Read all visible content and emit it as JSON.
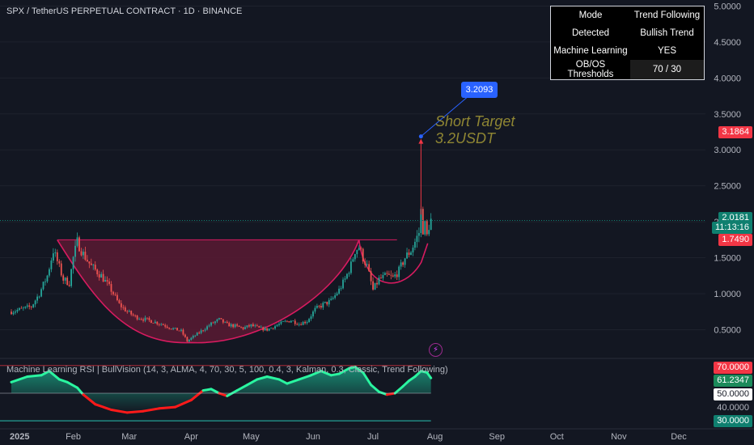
{
  "symbol": "SPX / TetherUS PERPETUAL CONTRACT · 1D · BINANCE",
  "info_table": [
    {
      "key": "Mode",
      "value": "Trend Following"
    },
    {
      "key": "Detected",
      "value": "Bullish Trend"
    },
    {
      "key": "Machine Learning",
      "value": "YES"
    },
    {
      "key": "OB/OS Thresholds",
      "value": "70 / 30"
    }
  ],
  "price_labels": {
    "target_marker": "3.1864",
    "last_price": "2.0181",
    "countdown": "11:13:16",
    "neckline": "1.7490"
  },
  "target_text_line1": "Short Target",
  "target_text_line2": "3.2USDT",
  "target_callout": "3.2093",
  "indicator": {
    "title": "Machine Learning RSI | BullVision (14, 3, ALMA, 4, 70, 30, 5, 100, 0.4, 3, Kalman, 0.3, Classic, Trend Following)",
    "axis_labels": [
      "70.0000",
      "61.2347",
      "50.0000",
      "40.0000",
      "30.0000"
    ]
  },
  "colors": {
    "background": "#131722",
    "up_candle": "#26a69a",
    "down_candle": "#ef5350",
    "cup": "#d81b60",
    "cup_fill": "#5a1a33",
    "rsi_up": "#2af5a0",
    "rsi_down": "#ff1a1a",
    "target_label": "#2962ff"
  },
  "chart_data": {
    "type": "candlestick",
    "x_ticks": [
      "2025",
      "Feb",
      "Mar",
      "Apr",
      "May",
      "Jun",
      "Jul",
      "Aug",
      "Sep",
      "Oct",
      "Nov",
      "Dec"
    ],
    "y_ticks": [
      0.5,
      1.0,
      1.5,
      2.0,
      2.5,
      3.0,
      3.5,
      4.0,
      4.5,
      5.0
    ],
    "y_tick_labels": [
      "0.5000",
      "1.0000",
      "1.5000",
      "2.0000",
      "2.5000",
      "3.0000",
      "3.5000",
      "4.0000",
      "4.5000",
      "5.0000"
    ],
    "ylim": [
      0.1,
      5.05
    ],
    "close_path": [
      [
        0,
        0.75
      ],
      [
        10,
        0.82
      ],
      [
        14,
        1.0
      ],
      [
        18,
        1.25
      ],
      [
        21,
        1.6
      ],
      [
        23,
        1.45
      ],
      [
        26,
        1.2
      ],
      [
        29,
        1.15
      ],
      [
        31,
        1.5
      ],
      [
        33,
        1.72
      ],
      [
        36,
        1.55
      ],
      [
        40,
        1.38
      ],
      [
        45,
        1.25
      ],
      [
        50,
        1.05
      ],
      [
        54,
        0.85
      ],
      [
        58,
        0.75
      ],
      [
        62,
        0.68
      ],
      [
        66,
        0.65
      ],
      [
        70,
        0.62
      ],
      [
        75,
        0.58
      ],
      [
        80,
        0.52
      ],
      [
        85,
        0.48
      ],
      [
        88,
        0.34
      ],
      [
        92,
        0.42
      ],
      [
        96,
        0.5
      ],
      [
        100,
        0.58
      ],
      [
        104,
        0.64
      ],
      [
        108,
        0.57
      ],
      [
        112,
        0.55
      ],
      [
        116,
        0.52
      ],
      [
        120,
        0.56
      ],
      [
        124,
        0.52
      ],
      [
        128,
        0.5
      ],
      [
        132,
        0.55
      ],
      [
        136,
        0.6
      ],
      [
        140,
        0.63
      ],
      [
        144,
        0.58
      ],
      [
        148,
        0.62
      ],
      [
        152,
        0.78
      ],
      [
        156,
        0.85
      ],
      [
        160,
        0.9
      ],
      [
        164,
        1.05
      ],
      [
        167,
        1.2
      ],
      [
        170,
        1.4
      ],
      [
        172,
        1.6
      ],
      [
        174,
        1.65
      ],
      [
        176,
        1.5
      ],
      [
        178,
        1.38
      ],
      [
        181,
        1.05
      ],
      [
        184,
        1.2
      ],
      [
        188,
        1.25
      ],
      [
        191,
        1.22
      ],
      [
        194,
        1.32
      ],
      [
        197,
        1.5
      ],
      [
        200,
        1.6
      ],
      [
        202,
        1.72
      ],
      [
        204,
        1.85
      ],
      [
        205,
        2.15
      ],
      [
        206,
        1.9
      ],
      [
        207,
        1.95
      ],
      [
        208,
        1.8
      ],
      [
        209,
        1.95
      ],
      [
        210,
        2.02
      ]
    ],
    "neckline": {
      "start_day": 23,
      "end_day": 174,
      "price": 1.749
    },
    "target": {
      "price": 3.1864,
      "callout": 3.2093,
      "label_line1": "Short Target",
      "label_line2": "3.2USDT",
      "from_price": 2.1
    },
    "rsi": {
      "ylim": [
        26,
        74
      ],
      "thresholds": [
        70,
        50,
        30
      ],
      "current": 61.2347,
      "path": [
        [
          0,
          58
        ],
        [
          8,
          62
        ],
        [
          15,
          63
        ],
        [
          19,
          66
        ],
        [
          24,
          60
        ],
        [
          28,
          58
        ],
        [
          33,
          54
        ],
        [
          36,
          49
        ],
        [
          42,
          42
        ],
        [
          50,
          38
        ],
        [
          58,
          36
        ],
        [
          66,
          37
        ],
        [
          74,
          39
        ],
        [
          82,
          40
        ],
        [
          90,
          45
        ],
        [
          96,
          52
        ],
        [
          100,
          53
        ],
        [
          104,
          50
        ],
        [
          108,
          48
        ],
        [
          113,
          52
        ],
        [
          118,
          56
        ],
        [
          123,
          60
        ],
        [
          128,
          62
        ],
        [
          134,
          60
        ],
        [
          138,
          57
        ],
        [
          144,
          60
        ],
        [
          150,
          63
        ],
        [
          155,
          66
        ],
        [
          160,
          63
        ],
        [
          164,
          64
        ],
        [
          169,
          68
        ],
        [
          172,
          69
        ],
        [
          176,
          65
        ],
        [
          180,
          56
        ],
        [
          184,
          51
        ],
        [
          188,
          49
        ],
        [
          192,
          50
        ],
        [
          196,
          55
        ],
        [
          199,
          59
        ],
        [
          202,
          62
        ],
        [
          205,
          66
        ],
        [
          208,
          65
        ],
        [
          210,
          61
        ]
      ]
    }
  }
}
